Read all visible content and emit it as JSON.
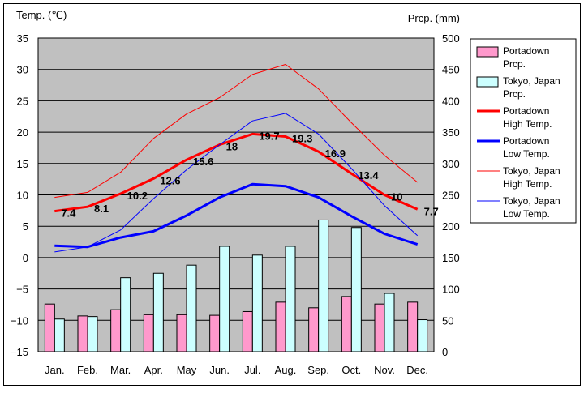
{
  "chart_data": {
    "type": "bar",
    "y_left_label": "Temp. (℃)",
    "y_right_label": "Prcp. (mm)",
    "categories": [
      "Jan.",
      "Feb.",
      "Mar.",
      "Apr.",
      "May",
      "Jun.",
      "Jul.",
      "Aug.",
      "Sep.",
      "Oct.",
      "Nov.",
      "Dec."
    ],
    "ylim_left": [
      -15,
      35
    ],
    "yticks_left": [
      "35",
      "30",
      "25",
      "20",
      "15",
      "10",
      "5",
      "0",
      "−5",
      "−10",
      "−15"
    ],
    "ylim_right": [
      0,
      500
    ],
    "yticks_right": [
      "500",
      "450",
      "400",
      "350",
      "300",
      "250",
      "200",
      "150",
      "100",
      "50",
      "0"
    ],
    "grid": true,
    "legend_position": "right",
    "bar_series": [
      {
        "name": "Portadown Prcp.",
        "color": "#ff99cc",
        "values": [
          76,
          57,
          67,
          59,
          59,
          58,
          64,
          79,
          70,
          88,
          76,
          79
        ]
      },
      {
        "name": "Tokyo, Japan Prcp.",
        "color": "#ccffff",
        "values": [
          52,
          56,
          118,
          125,
          138,
          168,
          154,
          168,
          210,
          198,
          93,
          51
        ]
      }
    ],
    "line_series": [
      {
        "name": "Portadown High Temp.",
        "color": "#ff0000",
        "width": 3,
        "values": [
          7.4,
          8.1,
          10.2,
          12.6,
          15.6,
          18,
          19.7,
          19.3,
          16.9,
          13.4,
          10,
          7.7
        ],
        "labels": [
          "7.4",
          "8.1",
          "10.2",
          "12.6",
          "15.6",
          "18",
          "19.7",
          "19.3",
          "16.9",
          "13.4",
          "10",
          "7.7"
        ]
      },
      {
        "name": "Portadown Low Temp.",
        "color": "#0000ff",
        "width": 3,
        "values": [
          1.9,
          1.7,
          3.2,
          4.2,
          6.7,
          9.6,
          11.7,
          11.4,
          9.6,
          6.6,
          3.8,
          2.1
        ]
      },
      {
        "name": "Tokyo, Japan High Temp.",
        "color": "#ff0000",
        "width": 1,
        "values": [
          9.6,
          10.4,
          13.6,
          19,
          22.9,
          25.5,
          29.2,
          30.8,
          26.9,
          21.5,
          16.3,
          12
        ]
      },
      {
        "name": "Tokyo, Japan Low Temp.",
        "color": "#0000ff",
        "width": 1,
        "values": [
          0.9,
          1.7,
          4.4,
          9.4,
          14,
          18,
          21.8,
          23,
          19.7,
          14.2,
          8.3,
          3.5
        ]
      }
    ],
    "legend": [
      {
        "kind": "bar",
        "color": "#ff99cc",
        "line1": "Portadown",
        "line2": "Prcp."
      },
      {
        "kind": "bar",
        "color": "#ccffff",
        "line1": "Tokyo, Japan",
        "line2": "Prcp."
      },
      {
        "kind": "line",
        "color": "#ff0000",
        "width": 3,
        "line1": "Portadown",
        "line2": "High Temp."
      },
      {
        "kind": "line",
        "color": "#0000ff",
        "width": 3,
        "line1": "Portadown",
        "line2": "Low Temp."
      },
      {
        "kind": "line",
        "color": "#ff0000",
        "width": 1,
        "line1": "Tokyo, Japan",
        "line2": "High Temp."
      },
      {
        "kind": "line",
        "color": "#0000ff",
        "width": 1,
        "line1": "Tokyo, Japan",
        "line2": "Low Temp."
      }
    ],
    "colors": {
      "plot_background": "#c0c0c0",
      "grid": "#000000"
    }
  }
}
